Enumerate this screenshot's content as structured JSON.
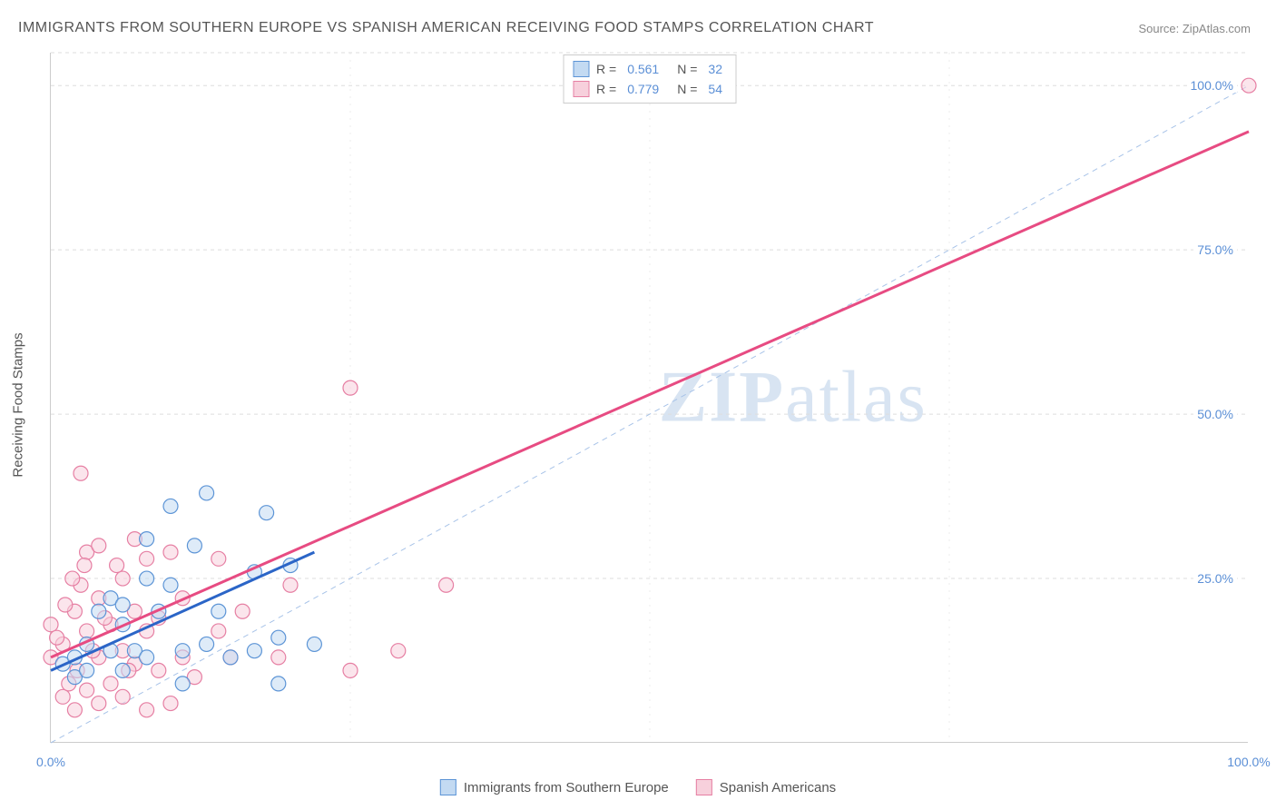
{
  "title": "IMMIGRANTS FROM SOUTHERN EUROPE VS SPANISH AMERICAN RECEIVING FOOD STAMPS CORRELATION CHART",
  "source_label": "Source: ",
  "source_value": "ZipAtlas.com",
  "y_axis_label": "Receiving Food Stamps",
  "watermark_bold": "ZIP",
  "watermark_rest": "atlas",
  "stats_legend": [
    {
      "swatch_fill": "#c3daf2",
      "swatch_stroke": "#5c94d6",
      "r_label": "R  =",
      "r_value": "0.561",
      "n_label": "N  =",
      "n_value": "32"
    },
    {
      "swatch_fill": "#f7d0dc",
      "swatch_stroke": "#e67fa3",
      "r_label": "R  =",
      "r_value": "0.779",
      "n_label": "N  =",
      "n_value": "54"
    }
  ],
  "bottom_legend": [
    {
      "swatch_fill": "#c3daf2",
      "swatch_stroke": "#5c94d6",
      "label": "Immigrants from Southern Europe"
    },
    {
      "swatch_fill": "#f7d0dc",
      "swatch_stroke": "#e67fa3",
      "label": "Spanish Americans"
    }
  ],
  "chart": {
    "type": "scatter",
    "xlim": [
      0,
      100
    ],
    "ylim": [
      0,
      105
    ],
    "x_ticks": [
      0,
      100
    ],
    "x_tick_labels": [
      "0.0%",
      "100.0%"
    ],
    "y_ticks": [
      25,
      50,
      75,
      100
    ],
    "y_tick_labels": [
      "25.0%",
      "50.0%",
      "75.0%",
      "100.0%"
    ],
    "v_gridlines": [
      25,
      50,
      75
    ],
    "grid_color": "#dddddd",
    "background_color": "#ffffff",
    "axis_color": "#cccccc",
    "tick_label_color": "#5b8fd6",
    "marker_radius": 8,
    "marker_opacity": 0.55,
    "series": [
      {
        "name": "Immigrants from Southern Europe",
        "color_fill": "#c3daf2",
        "color_stroke": "#5c94d6",
        "points": [
          [
            1,
            12
          ],
          [
            2,
            13
          ],
          [
            2,
            10
          ],
          [
            3,
            15
          ],
          [
            3,
            11
          ],
          [
            4,
            20
          ],
          [
            5,
            14
          ],
          [
            5,
            22
          ],
          [
            6,
            11
          ],
          [
            6,
            18
          ],
          [
            7,
            14
          ],
          [
            8,
            13
          ],
          [
            8,
            31
          ],
          [
            9,
            20
          ],
          [
            10,
            36
          ],
          [
            10,
            24
          ],
          [
            11,
            9
          ],
          [
            11,
            14
          ],
          [
            12,
            30
          ],
          [
            13,
            15
          ],
          [
            13,
            38
          ],
          [
            14,
            20
          ],
          [
            15,
            13
          ],
          [
            17,
            26
          ],
          [
            17,
            14
          ],
          [
            18,
            35
          ],
          [
            19,
            9
          ],
          [
            20,
            27
          ],
          [
            22,
            15
          ],
          [
            19,
            16
          ],
          [
            8,
            25
          ],
          [
            6,
            21
          ]
        ],
        "trend_line": {
          "x1": 0,
          "y1": 11,
          "x2": 22,
          "y2": 29,
          "stroke": "#2b65c7",
          "width": 3,
          "dash": "none"
        }
      },
      {
        "name": "Spanish Americans",
        "color_fill": "#f7d0dc",
        "color_stroke": "#e67fa3",
        "points": [
          [
            0,
            13
          ],
          [
            0,
            18
          ],
          [
            1,
            7
          ],
          [
            1,
            15
          ],
          [
            2,
            5
          ],
          [
            2,
            20
          ],
          [
            2.2,
            11
          ],
          [
            2.5,
            24
          ],
          [
            2.5,
            41
          ],
          [
            3,
            8
          ],
          [
            3,
            17
          ],
          [
            3,
            29
          ],
          [
            4,
            6
          ],
          [
            4,
            13
          ],
          [
            4,
            22
          ],
          [
            4,
            30
          ],
          [
            5,
            9
          ],
          [
            5,
            18
          ],
          [
            6,
            7
          ],
          [
            6,
            25
          ],
          [
            6,
            14
          ],
          [
            7,
            12
          ],
          [
            7,
            20
          ],
          [
            7,
            31
          ],
          [
            8,
            5
          ],
          [
            8,
            17
          ],
          [
            8,
            28
          ],
          [
            9,
            11
          ],
          [
            9,
            19
          ],
          [
            10,
            6
          ],
          [
            10,
            29
          ],
          [
            11,
            13
          ],
          [
            11,
            22
          ],
          [
            12,
            10
          ],
          [
            14,
            17
          ],
          [
            14,
            28
          ],
          [
            15,
            13
          ],
          [
            16,
            20
          ],
          [
            19,
            13
          ],
          [
            20,
            24
          ],
          [
            25,
            11
          ],
          [
            25,
            54
          ],
          [
            29,
            14
          ],
          [
            33,
            24
          ],
          [
            100,
            100
          ],
          [
            1.5,
            9
          ],
          [
            2.8,
            27
          ],
          [
            3.5,
            14
          ],
          [
            4.5,
            19
          ],
          [
            5.5,
            27
          ],
          [
            6.5,
            11
          ],
          [
            1.2,
            21
          ],
          [
            0.5,
            16
          ],
          [
            1.8,
            25
          ]
        ],
        "trend_line": {
          "x1": 0,
          "y1": 13,
          "x2": 100,
          "y2": 93,
          "stroke": "#e74b82",
          "width": 3,
          "dash": "none"
        }
      }
    ],
    "diagonal_line": {
      "x1": 0,
      "y1": 0,
      "x2": 100,
      "y2": 100,
      "stroke": "#a8c3e8",
      "width": 1,
      "dash": "6,5"
    }
  }
}
